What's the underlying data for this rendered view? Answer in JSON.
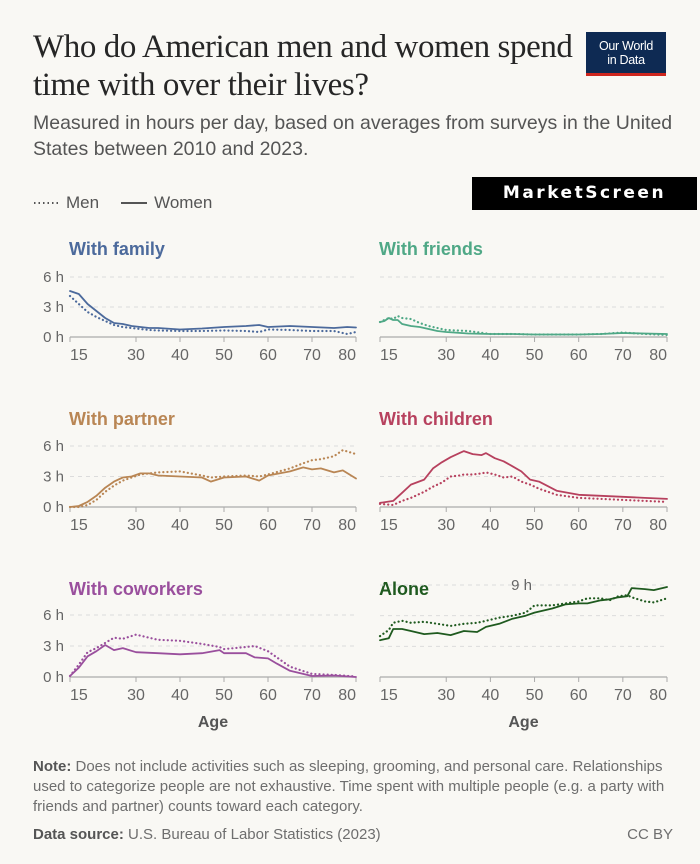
{
  "header": {
    "title": "Who do American men and women spend time with over their lives?",
    "subtitle": "Measured in hours per day, based on averages from surveys in the United States between 2010 and 2023.",
    "logo_line1": "Our World",
    "logo_line2": "in Data",
    "watermark": "MarketScreen"
  },
  "legend": {
    "men": "Men",
    "women": "Women"
  },
  "footer": {
    "note_label": "Note:",
    "note_text": " Does not include activities such as sleeping, grooming, and personal care. Relationships used to categorize people are not exhaustive. Time spent with multiple people (e.g. a party with friends and partner) counts toward each category.",
    "source_label": "Data source:",
    "source_text": " U.S. Bureau of Labor Statistics (2023)",
    "license": "CC BY"
  },
  "chart_data": [
    {
      "type": "line",
      "title": "With family",
      "color": "#4c6a9c",
      "xlabel": "",
      "ylabel": "",
      "xticks": [
        15,
        30,
        40,
        50,
        60,
        70,
        80
      ],
      "yticks": [
        0,
        3,
        6
      ],
      "ytick_labels": [
        "0 h",
        "3 h",
        "6 h"
      ],
      "show_ytick_labels": true,
      "xlim": [
        15,
        80
      ],
      "ylim": [
        0,
        6
      ],
      "x": [
        15,
        17,
        19,
        21,
        23,
        25,
        27,
        29,
        31,
        33,
        35,
        40,
        45,
        50,
        55,
        58,
        60,
        65,
        70,
        75,
        78,
        80
      ],
      "series": [
        {
          "name": "Women",
          "style": "solid",
          "values": [
            4.6,
            4.3,
            3.3,
            2.6,
            1.9,
            1.4,
            1.3,
            1.1,
            1.0,
            0.9,
            0.9,
            0.75,
            0.85,
            1.0,
            1.1,
            1.2,
            1.0,
            1.1,
            1.0,
            0.9,
            1.0,
            0.95
          ]
        },
        {
          "name": "Men",
          "style": "dotted",
          "values": [
            4.1,
            3.3,
            2.5,
            2.0,
            1.6,
            1.2,
            1.0,
            0.9,
            0.8,
            0.7,
            0.65,
            0.6,
            0.6,
            0.65,
            0.6,
            0.5,
            0.75,
            0.7,
            0.6,
            0.6,
            0.3,
            0.5
          ]
        }
      ]
    },
    {
      "type": "line",
      "title": "With friends",
      "color": "#4fa886",
      "xlabel": "",
      "ylabel": "",
      "xticks": [
        15,
        30,
        40,
        50,
        60,
        70,
        80
      ],
      "yticks": [
        0,
        3,
        6
      ],
      "ytick_labels": [
        "0 h",
        "3 h",
        "6 h"
      ],
      "show_ytick_labels": false,
      "xlim": [
        15,
        80
      ],
      "ylim": [
        0,
        6
      ],
      "x": [
        15,
        16,
        17,
        18,
        19,
        20,
        22,
        24,
        26,
        28,
        30,
        35,
        40,
        45,
        50,
        55,
        60,
        65,
        70,
        75,
        80
      ],
      "series": [
        {
          "name": "Women",
          "style": "solid",
          "values": [
            1.5,
            1.6,
            1.9,
            1.7,
            1.7,
            1.3,
            1.1,
            1.0,
            0.8,
            0.6,
            0.5,
            0.35,
            0.3,
            0.3,
            0.25,
            0.25,
            0.25,
            0.3,
            0.4,
            0.35,
            0.3
          ]
        },
        {
          "name": "Men",
          "style": "dotted",
          "values": [
            1.5,
            1.7,
            1.9,
            1.8,
            2.1,
            1.9,
            1.8,
            1.4,
            1.1,
            0.9,
            0.7,
            0.6,
            0.3,
            0.3,
            0.25,
            0.25,
            0.25,
            0.3,
            0.45,
            0.3,
            0.2
          ]
        }
      ]
    },
    {
      "type": "line",
      "title": "With partner",
      "color": "#b98654",
      "xlabel": "",
      "ylabel": "",
      "xticks": [
        15,
        30,
        40,
        50,
        60,
        70,
        80
      ],
      "yticks": [
        0,
        3,
        6
      ],
      "ytick_labels": [
        "0 h",
        "3 h",
        "6 h"
      ],
      "show_ytick_labels": true,
      "xlim": [
        15,
        80
      ],
      "ylim": [
        0,
        6
      ],
      "x": [
        15,
        17,
        19,
        21,
        23,
        25,
        27,
        29,
        31,
        33,
        35,
        40,
        45,
        47,
        50,
        55,
        58,
        60,
        65,
        68,
        70,
        72,
        75,
        77,
        80
      ],
      "series": [
        {
          "name": "Women",
          "style": "solid",
          "values": [
            0.0,
            0.1,
            0.5,
            1.1,
            1.9,
            2.5,
            2.9,
            3.0,
            3.3,
            3.3,
            3.1,
            3.0,
            2.9,
            2.5,
            2.9,
            3.0,
            2.6,
            3.1,
            3.5,
            3.9,
            3.7,
            3.8,
            3.4,
            3.6,
            2.8
          ]
        },
        {
          "name": "Men",
          "style": "dotted",
          "values": [
            0.0,
            0.0,
            0.2,
            0.7,
            1.5,
            2.1,
            2.6,
            2.9,
            3.2,
            3.3,
            3.4,
            3.5,
            3.1,
            2.9,
            3.0,
            3.1,
            3.0,
            3.2,
            3.8,
            4.3,
            4.6,
            4.7,
            5.0,
            5.6,
            5.2
          ]
        }
      ]
    },
    {
      "type": "line",
      "title": "With children",
      "color": "#b7415e",
      "xlabel": "",
      "ylabel": "",
      "xticks": [
        15,
        30,
        40,
        50,
        60,
        70,
        80
      ],
      "yticks": [
        0,
        3,
        6
      ],
      "ytick_labels": [
        "0 h",
        "3 h",
        "6 h"
      ],
      "show_ytick_labels": false,
      "xlim": [
        15,
        80
      ],
      "ylim": [
        0,
        6
      ],
      "x": [
        15,
        18,
        20,
        22,
        25,
        27,
        29,
        31,
        33,
        34,
        36,
        38,
        39,
        41,
        43,
        45,
        47,
        49,
        51,
        55,
        60,
        65,
        70,
        75,
        80
      ],
      "series": [
        {
          "name": "Women",
          "style": "solid",
          "values": [
            0.4,
            0.6,
            1.4,
            2.2,
            2.7,
            3.8,
            4.4,
            4.9,
            5.3,
            5.5,
            5.2,
            5.1,
            5.3,
            4.8,
            4.5,
            4.0,
            3.5,
            2.7,
            2.5,
            1.6,
            1.2,
            1.1,
            1.0,
            0.9,
            0.8
          ]
        },
        {
          "name": "Men",
          "style": "dotted",
          "values": [
            0.3,
            0.2,
            0.6,
            0.9,
            1.5,
            2.0,
            2.4,
            3.0,
            3.1,
            3.2,
            3.2,
            3.3,
            3.4,
            3.2,
            2.9,
            3.0,
            2.5,
            2.2,
            1.8,
            1.2,
            0.9,
            0.8,
            0.7,
            0.6,
            0.5
          ]
        }
      ]
    },
    {
      "type": "line",
      "title": "With coworkers",
      "color": "#9a4f9d",
      "xlabel": "Age",
      "ylabel": "",
      "xticks": [
        15,
        30,
        40,
        50,
        60,
        70,
        80
      ],
      "yticks": [
        0,
        3,
        6
      ],
      "ytick_labels": [
        "0 h",
        "3 h",
        "6 h"
      ],
      "show_ytick_labels": true,
      "xlim": [
        15,
        80
      ],
      "ylim": [
        0,
        6
      ],
      "x": [
        15,
        17,
        19,
        21,
        23,
        25,
        27,
        30,
        35,
        40,
        45,
        49,
        50,
        55,
        57,
        60,
        62,
        65,
        70,
        75,
        80
      ],
      "series": [
        {
          "name": "Women",
          "style": "solid",
          "values": [
            0.1,
            0.9,
            2.0,
            2.5,
            3.1,
            2.6,
            2.8,
            2.4,
            2.3,
            2.2,
            2.3,
            2.6,
            2.3,
            2.3,
            1.9,
            1.8,
            1.3,
            0.6,
            0.1,
            0.15,
            0.0
          ]
        },
        {
          "name": "Men",
          "style": "dotted",
          "values": [
            0.1,
            1.2,
            2.4,
            2.8,
            3.3,
            3.8,
            3.7,
            4.1,
            3.6,
            3.5,
            3.2,
            2.9,
            2.7,
            2.9,
            3.0,
            2.5,
            1.9,
            1.0,
            0.3,
            0.2,
            0.05
          ]
        }
      ]
    },
    {
      "type": "line",
      "title": "Alone",
      "color": "#1f5a1f",
      "xlabel": "Age",
      "ylabel": "",
      "xticks": [
        15,
        30,
        40,
        50,
        60,
        70,
        80
      ],
      "yticks": [
        0,
        3,
        6,
        9
      ],
      "ytick_labels": [
        "",
        "",
        "",
        "9 h"
      ],
      "show_ytick_labels": true,
      "xlim": [
        15,
        80
      ],
      "ylim": [
        0,
        9
      ],
      "x": [
        15,
        17,
        18,
        20,
        22,
        25,
        28,
        31,
        34,
        37,
        39,
        42,
        45,
        48,
        50,
        54,
        57,
        60,
        62,
        65,
        67,
        69,
        71,
        72,
        75,
        77,
        80
      ],
      "series": [
        {
          "name": "Women",
          "style": "solid",
          "values": [
            3.6,
            3.8,
            4.7,
            4.7,
            4.5,
            4.2,
            4.3,
            4.1,
            4.5,
            4.4,
            4.9,
            5.2,
            5.7,
            6.0,
            6.3,
            6.7,
            7.1,
            7.2,
            7.2,
            7.5,
            7.6,
            7.8,
            7.9,
            8.7,
            8.6,
            8.5,
            8.8
          ]
        },
        {
          "name": "Men",
          "style": "dotted",
          "values": [
            4.0,
            4.6,
            5.3,
            5.5,
            5.3,
            5.4,
            5.2,
            5.0,
            5.2,
            5.3,
            5.5,
            5.8,
            6.0,
            6.3,
            7.0,
            7.0,
            7.2,
            7.4,
            7.7,
            7.7,
            7.5,
            7.9,
            8.0,
            7.8,
            7.4,
            7.3,
            7.7
          ]
        }
      ]
    }
  ]
}
